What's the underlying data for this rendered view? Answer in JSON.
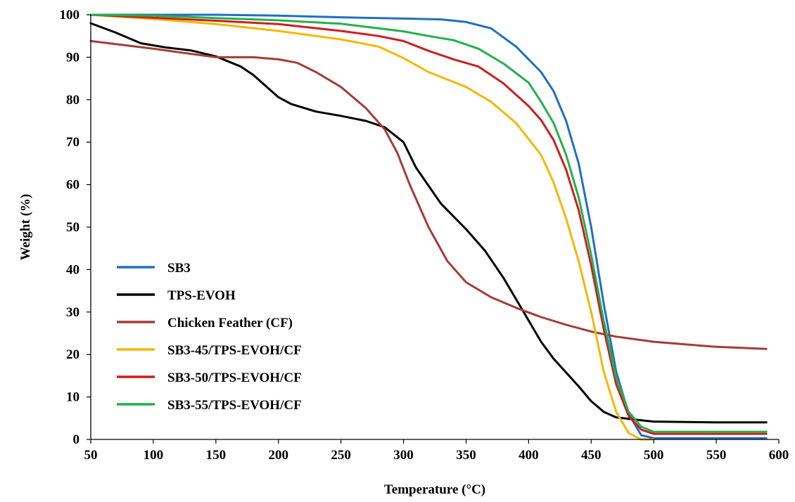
{
  "chart_data": {
    "type": "line",
    "title": "",
    "xlabel": "Temperature (°C)",
    "ylabel": "Weight (%)",
    "xlim": [
      50,
      600
    ],
    "ylim": [
      0,
      100
    ],
    "xticks": [
      50,
      100,
      150,
      200,
      250,
      300,
      350,
      400,
      450,
      500,
      550,
      600
    ],
    "yticks": [
      0,
      10,
      20,
      30,
      40,
      50,
      60,
      70,
      80,
      90,
      100
    ],
    "grid": false,
    "legend_position": "lower-left",
    "series": [
      {
        "name": "SB3",
        "color": "#1f6fc4",
        "x": [
          50,
          100,
          150,
          200,
          250,
          300,
          330,
          350,
          370,
          390,
          410,
          420,
          430,
          440,
          450,
          460,
          470,
          480,
          490,
          500,
          550,
          590
        ],
        "y": [
          100,
          100,
          100,
          99.8,
          99.4,
          99.1,
          98.9,
          98.3,
          96.8,
          92.5,
          86.5,
          82,
          75,
          65,
          50,
          32,
          16,
          6,
          1,
          0.3,
          0.3,
          0.3
        ]
      },
      {
        "name": "TPS-EVOH",
        "color": "#000000",
        "x": [
          50,
          70,
          90,
          110,
          130,
          150,
          170,
          180,
          190,
          200,
          210,
          230,
          250,
          270,
          285,
          300,
          310,
          330,
          350,
          365,
          380,
          395,
          410,
          420,
          440,
          450,
          460,
          470,
          490,
          500,
          550,
          590
        ],
        "y": [
          98,
          95.8,
          93.3,
          92.3,
          91.6,
          90.2,
          87.8,
          85.8,
          83.2,
          80.6,
          79,
          77.2,
          76.2,
          75,
          73.5,
          70,
          64,
          55.5,
          49.5,
          44.5,
          38,
          30.5,
          23,
          19,
          12.5,
          9,
          6.5,
          5.2,
          4.5,
          4.2,
          4,
          4
        ]
      },
      {
        "name": "Chicken Feather (CF)",
        "color": "#a63b36",
        "x": [
          50,
          100,
          150,
          180,
          200,
          215,
          230,
          250,
          270,
          285,
          295,
          305,
          320,
          335,
          350,
          370,
          390,
          410,
          430,
          450,
          470,
          500,
          550,
          590
        ],
        "y": [
          93.8,
          92,
          90,
          90,
          89.5,
          88.7,
          86.5,
          83,
          78,
          73,
          67.5,
          60,
          50,
          42,
          37,
          33.5,
          31,
          28.8,
          27,
          25.4,
          24.2,
          23,
          21.8,
          21.3
        ]
      },
      {
        "name": "SB3-45/TPS-EVOH/CF",
        "color": "#f5b800",
        "x": [
          50,
          100,
          150,
          200,
          250,
          280,
          300,
          320,
          350,
          370,
          390,
          410,
          420,
          430,
          440,
          450,
          460,
          470,
          480,
          490,
          500
        ],
        "y": [
          100,
          99,
          97.8,
          96.2,
          94.2,
          92.5,
          89.8,
          86.5,
          83,
          79.5,
          74.5,
          67,
          60.5,
          52,
          42,
          30,
          16,
          6.5,
          1.5,
          0,
          0
        ]
      },
      {
        "name": "SB3-50/TPS-EVOH/CF",
        "color": "#cc1f1f",
        "x": [
          50,
          100,
          150,
          200,
          250,
          280,
          300,
          320,
          340,
          360,
          380,
          400,
          410,
          420,
          430,
          440,
          450,
          460,
          470,
          480,
          490,
          500,
          550,
          590
        ],
        "y": [
          100,
          99.3,
          98.6,
          97.8,
          96.2,
          95,
          93.8,
          91.5,
          89.5,
          87.8,
          83.8,
          78.5,
          75.2,
          70.5,
          63.5,
          54,
          41,
          26,
          13,
          5.5,
          2.3,
          1.3,
          1.3,
          1.3
        ]
      },
      {
        "name": "SB3-55/TPS-EVOH/CF",
        "color": "#22b14c",
        "x": [
          50,
          100,
          150,
          200,
          250,
          280,
          300,
          320,
          340,
          360,
          380,
          400,
          410,
          420,
          430,
          440,
          450,
          460,
          470,
          480,
          490,
          500,
          550,
          590
        ],
        "y": [
          100,
          99.8,
          99.2,
          98.7,
          97.9,
          96.8,
          96.1,
          95,
          94,
          92,
          88.5,
          84,
          79.5,
          74.5,
          67,
          57,
          43.5,
          28,
          14.5,
          6.5,
          3,
          1.8,
          1.8,
          1.8
        ]
      }
    ]
  }
}
